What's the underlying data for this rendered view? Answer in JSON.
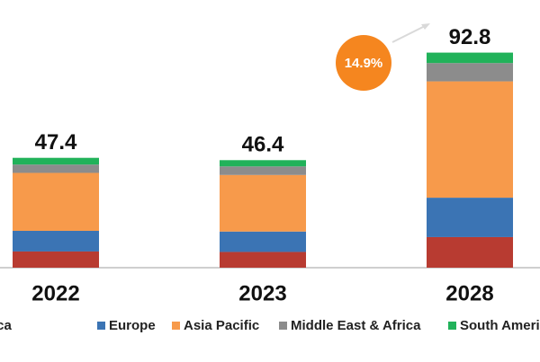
{
  "chart_data": {
    "type": "stacked_bar",
    "categories": [
      "2022",
      "2023",
      "2028"
    ],
    "series": [
      {
        "name": "North America",
        "color": "#b83b31",
        "values": [
          7.0,
          6.8,
          13.2
        ]
      },
      {
        "name": "Europe",
        "color": "#3b74b4",
        "values": [
          8.9,
          8.8,
          17.0
        ]
      },
      {
        "name": "Asia Pacific",
        "color": "#f79a4b",
        "values": [
          25.0,
          24.4,
          50.2
        ]
      },
      {
        "name": "Middle East & Africa",
        "color": "#8c8c8c",
        "values": [
          3.6,
          3.7,
          7.9
        ]
      },
      {
        "name": "South America",
        "color": "#21b25a",
        "values": [
          2.9,
          2.7,
          4.5
        ]
      }
    ],
    "totals": [
      47.4,
      46.4,
      92.8
    ],
    "annotation": "14.9%",
    "ylim": [
      0,
      100
    ]
  }
}
